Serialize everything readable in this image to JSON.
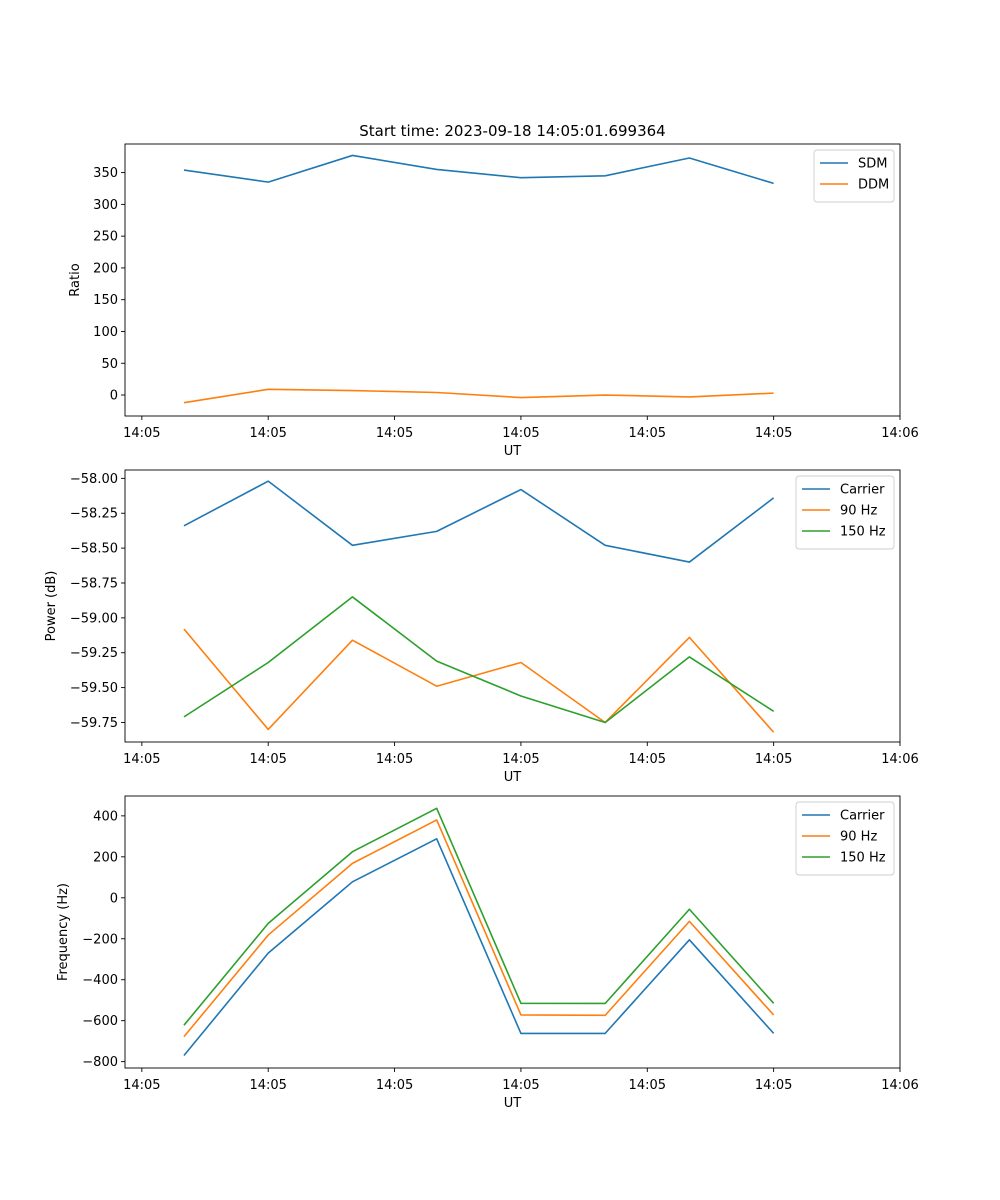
{
  "title": "Start time: 2023-09-18 14:05:01.699364",
  "colors": {
    "blue": "#1f77b4",
    "orange": "#ff7f0e",
    "green": "#2ca02c"
  },
  "chart_data": [
    {
      "type": "line",
      "title": "Start time: 2023-09-18 14:05:01.699364",
      "xlabel": "UT",
      "ylabel": "Ratio",
      "x": [
        0.5,
        1.5,
        2.5,
        3.5,
        4.5,
        5.5,
        6.5,
        7.5
      ],
      "xlim": [
        -0.2,
        9.0
      ],
      "xticks": [
        0,
        1.5,
        3,
        4.5,
        6,
        7.5,
        9
      ],
      "xtick_labels": [
        "14:05",
        "14:05",
        "14:05",
        "14:05",
        "14:05",
        "14:05",
        "14:06"
      ],
      "ylim": [
        -33,
        395
      ],
      "yticks": [
        0,
        50,
        100,
        150,
        200,
        250,
        300,
        350
      ],
      "ytick_labels": [
        "0",
        "50",
        "100",
        "150",
        "200",
        "250",
        "300",
        "350"
      ],
      "legend": "top-right",
      "series": [
        {
          "name": "SDM",
          "color": "#1f77b4",
          "values": [
            354,
            335,
            377,
            355,
            342,
            345,
            373,
            333
          ]
        },
        {
          "name": "DDM",
          "color": "#ff7f0e",
          "values": [
            -12,
            9,
            7,
            4,
            -4,
            0,
            -3,
            3
          ]
        }
      ]
    },
    {
      "type": "line",
      "title": "",
      "xlabel": "UT",
      "ylabel": "Power (dB)",
      "x": [
        0.5,
        1.5,
        2.5,
        3.5,
        4.5,
        5.5,
        6.5,
        7.5
      ],
      "xlim": [
        -0.2,
        9.0
      ],
      "xticks": [
        0,
        1.5,
        3,
        4.5,
        6,
        7.5,
        9
      ],
      "xtick_labels": [
        "14:05",
        "14:05",
        "14:05",
        "14:05",
        "14:05",
        "14:05",
        "14:06"
      ],
      "ylim": [
        -59.89,
        -57.94
      ],
      "yticks": [
        -59.75,
        -59.5,
        -59.25,
        -59.0,
        -58.75,
        -58.5,
        -58.25,
        -58.0
      ],
      "ytick_labels": [
        "−59.75",
        "−59.50",
        "−59.25",
        "−59.00",
        "−58.75",
        "−58.50",
        "−58.25",
        "−58.00"
      ],
      "legend": "top-right",
      "series": [
        {
          "name": "Carrier",
          "color": "#1f77b4",
          "values": [
            -58.34,
            -58.02,
            -58.48,
            -58.38,
            -58.08,
            -58.48,
            -58.6,
            -58.14
          ]
        },
        {
          "name": "90 Hz",
          "color": "#ff7f0e",
          "values": [
            -59.08,
            -59.8,
            -59.16,
            -59.49,
            -59.32,
            -59.75,
            -59.14,
            -59.82
          ]
        },
        {
          "name": "150 Hz",
          "color": "#2ca02c",
          "values": [
            -59.71,
            -59.32,
            -58.85,
            -59.31,
            -59.56,
            -59.75,
            -59.28,
            -59.67
          ]
        }
      ]
    },
    {
      "type": "line",
      "title": "",
      "xlabel": "UT",
      "ylabel": "Frequency (Hz)",
      "x": [
        0.5,
        1.5,
        2.5,
        3.5,
        4.5,
        5.5,
        6.5,
        7.5
      ],
      "xlim": [
        -0.2,
        9.0
      ],
      "xticks": [
        0,
        1.5,
        3,
        4.5,
        6,
        7.5,
        9
      ],
      "xtick_labels": [
        "14:05",
        "14:05",
        "14:05",
        "14:05",
        "14:05",
        "14:05",
        "14:06"
      ],
      "ylim": [
        -831,
        497
      ],
      "yticks": [
        -800,
        -600,
        -400,
        -200,
        0,
        200,
        400
      ],
      "ytick_labels": [
        "−800",
        "−600",
        "−400",
        "−200",
        "0",
        "200",
        "400"
      ],
      "legend": "top-right",
      "series": [
        {
          "name": "Carrier",
          "color": "#1f77b4",
          "values": [
            -770,
            -270,
            78,
            288,
            -662,
            -662,
            -205,
            -662
          ]
        },
        {
          "name": "90 Hz",
          "color": "#ff7f0e",
          "values": [
            -678,
            -182,
            168,
            380,
            -572,
            -574,
            -115,
            -572
          ]
        },
        {
          "name": "150 Hz",
          "color": "#2ca02c",
          "values": [
            -622,
            -125,
            225,
            437,
            -515,
            -516,
            -56,
            -515
          ]
        }
      ]
    }
  ]
}
